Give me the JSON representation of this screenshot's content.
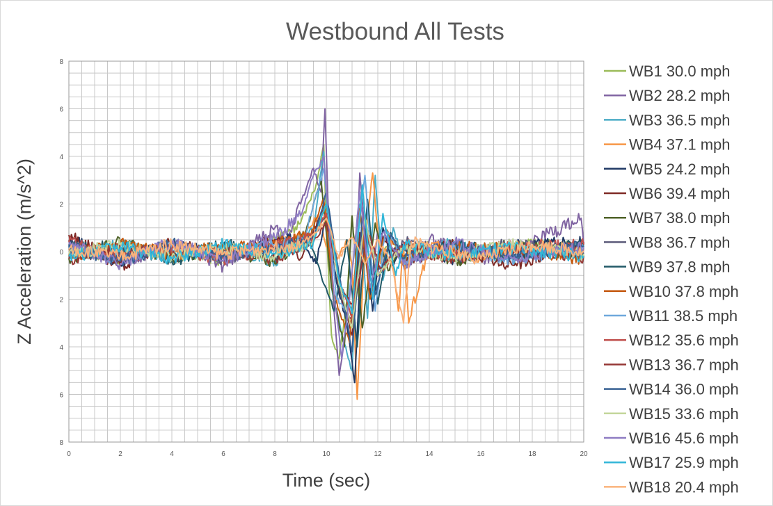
{
  "chart_data": {
    "type": "line",
    "title": "Westbound  All Tests",
    "xlabel": "Time (sec)",
    "ylabel": "Z Acceleration (m/s^2)",
    "xlim": [
      0,
      20
    ],
    "ylim": [
      -8,
      8
    ],
    "x_ticks": [
      "0",
      "2",
      "4",
      "6",
      "8",
      "10",
      "12",
      "14",
      "16",
      "18",
      "20"
    ],
    "y_ticks": [
      "8",
      "6",
      "4",
      "2",
      "0",
      "2",
      "4",
      "6",
      "8"
    ],
    "grid": true,
    "legend_position": "right",
    "series": [
      {
        "name": "WB1 30.0 mph",
        "color": "#9bbb59",
        "x": [
          0,
          2,
          4,
          6,
          8,
          9,
          9.6,
          9.9,
          10.0,
          10.2,
          10.5,
          10.8,
          11.0,
          11.3,
          11.6,
          12.0,
          12.5,
          13,
          14,
          16,
          18,
          20
        ],
        "y": [
          0.2,
          -0.3,
          0.1,
          -0.4,
          0.5,
          1.2,
          2.8,
          4.5,
          1.0,
          -3.5,
          -4.5,
          -2.0,
          1.5,
          -2.5,
          0.8,
          -0.5,
          0.6,
          -0.3,
          0.2,
          -0.2,
          0.3,
          0.1
        ]
      },
      {
        "name": "WB2 28.2 mph",
        "color": "#8064a2",
        "x": [
          0,
          2,
          4,
          6,
          8,
          8.5,
          9.0,
          9.5,
          9.8,
          9.95,
          10.1,
          10.3,
          10.5,
          10.8,
          11.0,
          11.3,
          11.7,
          12.0,
          13,
          14,
          16,
          18,
          19.9,
          20
        ],
        "y": [
          0.4,
          -0.5,
          0.3,
          -0.6,
          1.0,
          0.5,
          2.0,
          3.5,
          2.5,
          6.0,
          1.0,
          -2.5,
          -5.2,
          -3.0,
          -4.5,
          3.3,
          -2.0,
          1.0,
          -0.6,
          0.5,
          -0.3,
          0.4,
          1.4,
          0.3
        ]
      },
      {
        "name": "WB3 36.5 mph",
        "color": "#4bacc6",
        "x": [
          0,
          2,
          4,
          6,
          8,
          9.5,
          9.9,
          10.2,
          10.6,
          11.0,
          11.3,
          11.6,
          11.9,
          12.2,
          12.6,
          13,
          15,
          17,
          20
        ],
        "y": [
          -0.2,
          0.3,
          -0.2,
          0.2,
          -0.4,
          1.0,
          4.2,
          -1.5,
          -3.5,
          -5.0,
          2.0,
          -2.8,
          3.2,
          -1.2,
          1.0,
          -0.4,
          0.4,
          -0.3,
          0.2
        ]
      },
      {
        "name": "WB4 37.1 mph",
        "color": "#f79646",
        "x": [
          0,
          2,
          4,
          6,
          8,
          9.0,
          9.7,
          10.0,
          10.4,
          10.8,
          11.0,
          11.2,
          11.5,
          11.8,
          12.1,
          12.5,
          12.8,
          13.0,
          13.2,
          14,
          16,
          18,
          20
        ],
        "y": [
          0.1,
          -0.1,
          0.2,
          -0.2,
          0.3,
          0.6,
          1.5,
          0.2,
          -0.4,
          0.5,
          -0.6,
          -6.2,
          0.4,
          3.3,
          -0.5,
          0.5,
          -2.5,
          0.2,
          -3.0,
          0.3,
          -0.2,
          0.2,
          0.1
        ]
      },
      {
        "name": "WB5 24.2 mph",
        "color": "#1f3864",
        "x": [
          0,
          2,
          4,
          6,
          8,
          9.0,
          9.6,
          10.0,
          10.4,
          10.8,
          11.1,
          11.4,
          11.8,
          12.2,
          12.6,
          13,
          15,
          17,
          20
        ],
        "y": [
          0.5,
          -0.4,
          0.3,
          -0.2,
          0.4,
          0.6,
          -0.5,
          1.5,
          -1.3,
          -3.0,
          -5.5,
          0.8,
          -2.5,
          1.0,
          -0.6,
          0.3,
          -0.3,
          0.2,
          0.4
        ]
      },
      {
        "name": "WB6 39.4 mph",
        "color": "#7f2a26",
        "x": [
          0,
          2,
          4,
          6,
          8,
          9.0,
          10.0,
          10.5,
          11.0,
          11.3,
          11.8,
          12.2,
          13,
          15,
          17,
          20
        ],
        "y": [
          0.7,
          -0.6,
          0.4,
          -0.3,
          0.5,
          -0.3,
          2.0,
          -1.5,
          -3.5,
          0.8,
          -1.5,
          0.6,
          -0.4,
          0.3,
          -0.6,
          0.2
        ]
      },
      {
        "name": "WB7 38.0 mph",
        "color": "#4f6228",
        "x": [
          0,
          2,
          4,
          6,
          8,
          9.2,
          9.8,
          10.2,
          10.7,
          11.0,
          11.4,
          11.9,
          12.4,
          13,
          15,
          17,
          20
        ],
        "y": [
          -0.3,
          0.4,
          -0.3,
          0.2,
          -0.5,
          0.8,
          3.0,
          -1.5,
          -4.0,
          1.5,
          -3.2,
          1.2,
          -0.8,
          0.3,
          -0.4,
          0.3,
          -0.2
        ]
      },
      {
        "name": "WB8 36.7 mph",
        "color": "#5b5a7a",
        "x": [
          0,
          2,
          4,
          6,
          8,
          9.5,
          10.1,
          10.6,
          11.0,
          11.5,
          12.0,
          13,
          15,
          17,
          20
        ],
        "y": [
          0.2,
          -0.2,
          0.3,
          -0.3,
          0.2,
          0.5,
          1.8,
          -2.0,
          -3.0,
          1.0,
          -0.8,
          0.4,
          -0.2,
          0.3,
          -0.1
        ]
      },
      {
        "name": "WB9 37.8 mph",
        "color": "#215967",
        "x": [
          0,
          2,
          4,
          6,
          8,
          9.3,
          9.8,
          10.3,
          10.8,
          11.2,
          11.6,
          12.0,
          12.5,
          13,
          15,
          17,
          20
        ],
        "y": [
          0.3,
          0.2,
          -0.4,
          0.3,
          -0.2,
          0.6,
          -1.0,
          -2.5,
          0.5,
          -4.0,
          2.2,
          -2.2,
          0.8,
          -0.3,
          0.3,
          -0.2,
          0.3
        ]
      },
      {
        "name": "WB10 37.8 mph",
        "color": "#c55a11",
        "x": [
          0,
          2,
          4,
          6,
          8,
          9.4,
          9.9,
          10.3,
          10.9,
          11.3,
          11.7,
          12.3,
          13,
          15,
          17,
          20
        ],
        "y": [
          -0.2,
          0.3,
          -0.1,
          0.2,
          0.3,
          0.7,
          2.2,
          -1.8,
          -3.8,
          1.8,
          -2.0,
          0.9,
          -0.2,
          0.2,
          0.1,
          -0.3
        ]
      },
      {
        "name": "WB11 38.5 mph",
        "color": "#6fa8dc",
        "x": [
          0,
          2,
          4,
          6,
          8,
          9.1,
          9.9,
          10.4,
          10.8,
          11.2,
          11.5,
          11.9,
          12.3,
          13,
          15,
          17,
          20
        ],
        "y": [
          0.1,
          -0.3,
          0.2,
          -0.1,
          0.3,
          0.4,
          3.5,
          -2.0,
          -2.5,
          0.8,
          3.2,
          -2.5,
          1.0,
          -0.3,
          0.2,
          -0.3,
          0.1
        ]
      },
      {
        "name": "WB12 35.6 mph",
        "color": "#c0504d",
        "x": [
          0,
          2,
          4,
          6,
          8,
          9.5,
          10.0,
          10.5,
          11.0,
          11.5,
          12.0,
          13,
          15,
          17,
          20
        ],
        "y": [
          0.4,
          -0.2,
          0.1,
          -0.3,
          0.2,
          0.6,
          1.6,
          -1.2,
          -2.8,
          1.2,
          -1.0,
          0.3,
          -0.2,
          0.2,
          0.3
        ]
      },
      {
        "name": "WB13 36.7 mph",
        "color": "#953735",
        "x": [
          0,
          2,
          4,
          6,
          8,
          9.5,
          10.0,
          10.6,
          11.1,
          11.6,
          12.1,
          13,
          15,
          17,
          20
        ],
        "y": [
          -0.3,
          0.2,
          -0.2,
          0.1,
          -0.3,
          0.4,
          1.2,
          -1.6,
          -2.4,
          0.9,
          -0.7,
          0.2,
          -0.3,
          0.1,
          -0.2
        ]
      },
      {
        "name": "WB14 36.0 mph",
        "color": "#376092",
        "x": [
          0,
          2,
          4,
          6,
          8,
          9.5,
          10.0,
          10.5,
          11.0,
          11.4,
          11.9,
          12.5,
          13,
          15,
          17,
          20
        ],
        "y": [
          0.2,
          -0.4,
          0.3,
          -0.2,
          0.1,
          0.5,
          2.5,
          -1.0,
          -4.2,
          1.5,
          -1.8,
          0.7,
          -0.3,
          0.3,
          -0.2,
          0.2
        ]
      },
      {
        "name": "WB15 33.6 mph",
        "color": "#c3d69b",
        "x": [
          0,
          2,
          4,
          6,
          8,
          9.5,
          10.0,
          10.5,
          11.0,
          11.5,
          12.0,
          13,
          15,
          17,
          20
        ],
        "y": [
          -0.1,
          0.3,
          -0.2,
          0.2,
          -0.2,
          0.5,
          2.0,
          -1.4,
          -3.2,
          1.4,
          -1.0,
          0.2,
          -0.2,
          0.3,
          -0.1
        ]
      },
      {
        "name": "WB16 45.6 mph",
        "color": "#8e7cc3",
        "x": [
          0,
          2,
          4,
          6,
          8,
          9.0,
          9.5,
          9.9,
          10.3,
          10.6,
          10.9,
          11.3,
          11.7,
          12.2,
          13,
          15,
          17,
          20
        ],
        "y": [
          0.3,
          -0.5,
          0.4,
          -0.4,
          0.6,
          1.5,
          3.2,
          4.0,
          -1.8,
          -4.5,
          -2.0,
          2.5,
          -1.5,
          0.8,
          -0.5,
          0.4,
          -0.3,
          0.2
        ]
      },
      {
        "name": "WB17 25.9 mph",
        "color": "#31b6d8",
        "x": [
          0,
          2,
          4,
          6,
          8,
          9.5,
          10.0,
          10.5,
          11.0,
          11.4,
          11.8,
          12.2,
          12.7,
          13,
          15,
          17,
          20
        ],
        "y": [
          -0.2,
          0.2,
          -0.3,
          0.3,
          -0.1,
          0.4,
          2.0,
          -1.2,
          -2.6,
          2.8,
          -2.0,
          1.6,
          -1.0,
          0.3,
          -0.2,
          0.2,
          -0.2
        ]
      },
      {
        "name": "WB18 20.4 mph",
        "color": "#fab27b",
        "x": [
          0,
          2,
          4,
          6,
          8,
          9.0,
          9.6,
          10.0,
          10.5,
          11.0,
          11.5,
          12.0,
          12.5,
          13.0,
          13.3,
          14,
          16,
          18,
          20
        ],
        "y": [
          0.1,
          -0.2,
          0.3,
          -0.1,
          0.2,
          0.3,
          0.8,
          1.4,
          -0.3,
          0.6,
          -0.5,
          0.5,
          -0.4,
          -3.0,
          0.4,
          0.2,
          -0.3,
          0.3,
          0.0
        ]
      }
    ]
  }
}
